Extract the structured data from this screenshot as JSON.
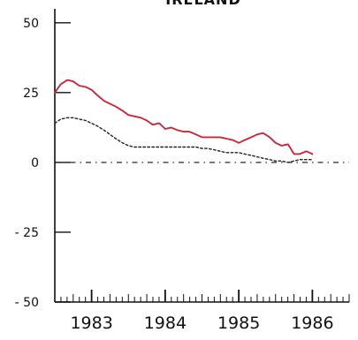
{
  "chart_data": {
    "type": "line",
    "title": "IRELAND",
    "xlabel": "",
    "ylabel": "",
    "ylim": [
      -50,
      55
    ],
    "xlim": [
      1982.5,
      1986.5
    ],
    "yticks": [
      50,
      25,
      0,
      -25,
      -50
    ],
    "ytick_labels": [
      "50",
      "25",
      "0",
      "- 25",
      "- 50"
    ],
    "xtick_labels": [
      {
        "x": 1983,
        "label": "1983"
      },
      {
        "x": 1984,
        "label": "1984"
      },
      {
        "x": 1985,
        "label": "1985"
      },
      {
        "x": 1986,
        "label": "1986"
      }
    ],
    "grid": false,
    "reference_line": {
      "y": 0,
      "style": "dash-dot"
    },
    "series": [
      {
        "color": "#c8283c",
        "style": "solid",
        "points": [
          [
            1982.5,
            25
          ],
          [
            1982.58,
            28
          ],
          [
            1982.67,
            29.5
          ],
          [
            1982.75,
            29
          ],
          [
            1982.83,
            27.5
          ],
          [
            1982.92,
            27
          ],
          [
            1983.0,
            26
          ],
          [
            1983.08,
            24
          ],
          [
            1983.17,
            22
          ],
          [
            1983.25,
            21
          ],
          [
            1983.33,
            20
          ],
          [
            1983.42,
            18.5
          ],
          [
            1983.5,
            17
          ],
          [
            1983.58,
            16.5
          ],
          [
            1983.67,
            16
          ],
          [
            1983.75,
            15
          ],
          [
            1983.83,
            13.5
          ],
          [
            1983.92,
            14
          ],
          [
            1984.0,
            12
          ],
          [
            1984.08,
            12.5
          ],
          [
            1984.17,
            11.5
          ],
          [
            1984.25,
            11
          ],
          [
            1984.33,
            11
          ],
          [
            1984.42,
            10
          ],
          [
            1984.5,
            9
          ],
          [
            1984.58,
            9
          ],
          [
            1984.67,
            9
          ],
          [
            1984.75,
            9
          ],
          [
            1984.83,
            8.5
          ],
          [
            1984.92,
            8
          ],
          [
            1985.0,
            7
          ],
          [
            1985.08,
            8
          ],
          [
            1985.17,
            9
          ],
          [
            1985.25,
            10
          ],
          [
            1985.33,
            10.5
          ],
          [
            1985.42,
            9
          ],
          [
            1985.5,
            7
          ],
          [
            1985.58,
            6
          ],
          [
            1985.67,
            6.5
          ],
          [
            1985.75,
            3
          ],
          [
            1985.83,
            3
          ],
          [
            1985.92,
            4
          ],
          [
            1986.0,
            3
          ]
        ]
      },
      {
        "color": "#222222",
        "style": "dotted",
        "points": [
          [
            1982.5,
            14
          ],
          [
            1982.58,
            15.5
          ],
          [
            1982.67,
            16
          ],
          [
            1982.75,
            16
          ],
          [
            1982.83,
            15.5
          ],
          [
            1982.92,
            15
          ],
          [
            1983.0,
            14
          ],
          [
            1983.08,
            13
          ],
          [
            1983.17,
            11.5
          ],
          [
            1983.25,
            10
          ],
          [
            1983.33,
            8.5
          ],
          [
            1983.42,
            7
          ],
          [
            1983.5,
            6
          ],
          [
            1983.58,
            5.5
          ],
          [
            1983.67,
            5.5
          ],
          [
            1983.75,
            5.5
          ],
          [
            1983.83,
            5.5
          ],
          [
            1983.92,
            5.5
          ],
          [
            1984.0,
            5.5
          ],
          [
            1984.08,
            5.5
          ],
          [
            1984.17,
            5.5
          ],
          [
            1984.25,
            5.5
          ],
          [
            1984.33,
            5.5
          ],
          [
            1984.42,
            5.5
          ],
          [
            1984.5,
            5
          ],
          [
            1984.58,
            5
          ],
          [
            1984.67,
            4.5
          ],
          [
            1984.75,
            4
          ],
          [
            1984.83,
            3.5
          ],
          [
            1984.92,
            3.5
          ],
          [
            1985.0,
            3.5
          ],
          [
            1985.08,
            3
          ],
          [
            1985.17,
            2.5
          ],
          [
            1985.25,
            2
          ],
          [
            1985.33,
            1.5
          ],
          [
            1985.42,
            1
          ],
          [
            1985.5,
            0.5
          ],
          [
            1985.58,
            0.5
          ],
          [
            1985.67,
            0
          ],
          [
            1985.75,
            0.5
          ],
          [
            1985.83,
            1
          ],
          [
            1985.92,
            1
          ],
          [
            1986.0,
            1
          ]
        ]
      }
    ]
  }
}
